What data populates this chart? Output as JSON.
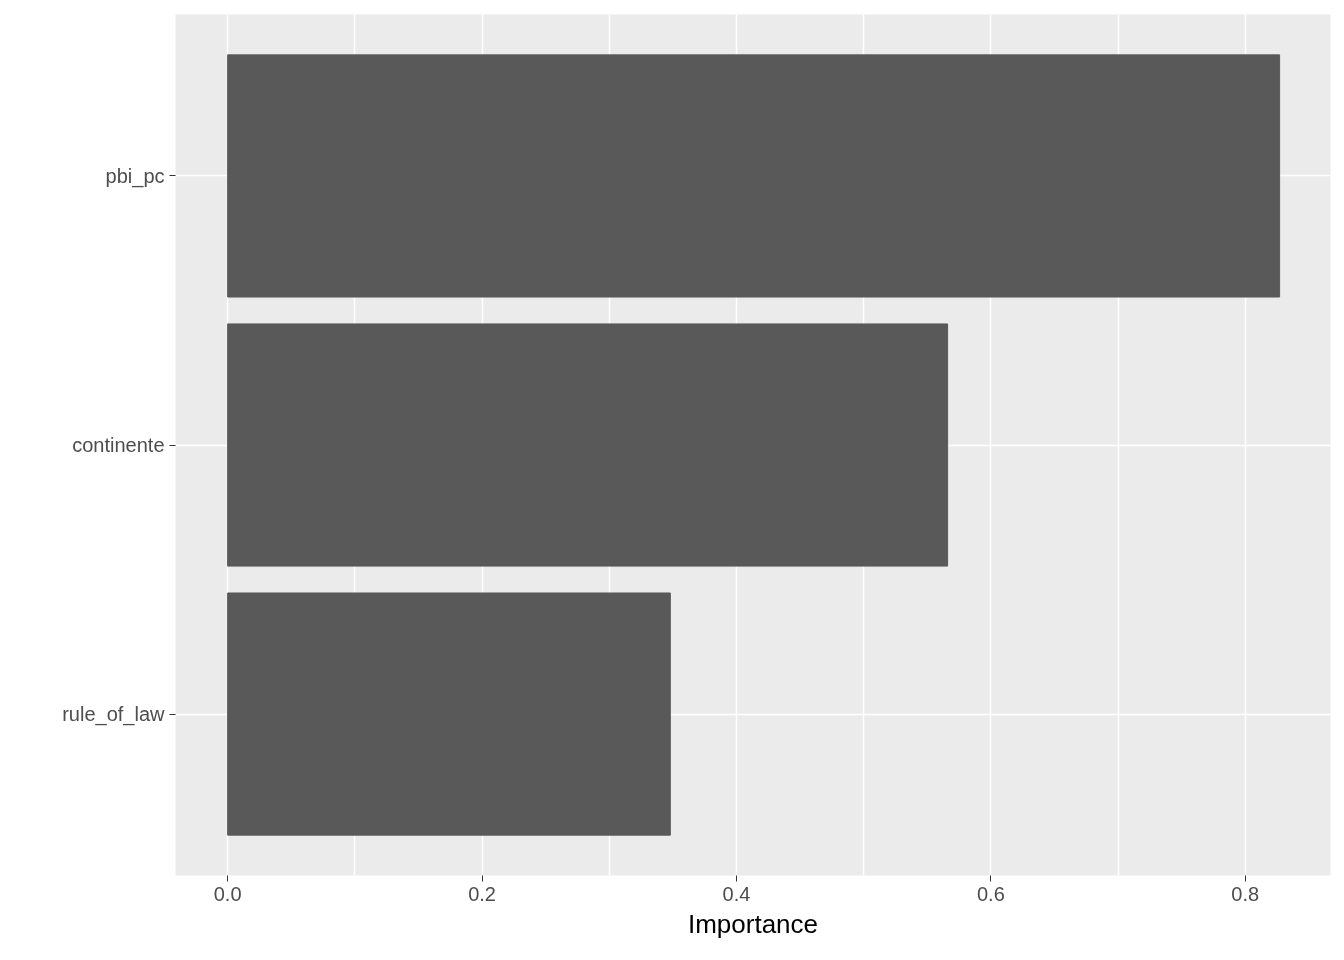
{
  "chart_data": {
    "type": "bar",
    "orientation": "horizontal",
    "xlabel": "Importance",
    "categories": [
      "pbi_pc",
      "continente",
      "rule_of_law"
    ],
    "values": [
      0.827,
      0.566,
      0.348
    ],
    "color": "#595959",
    "xlim": [
      -0.041,
      0.867
    ],
    "xticks": [
      {
        "value": 0,
        "label": "0.0"
      },
      {
        "value": 0.1,
        "label": null
      },
      {
        "value": 0.2,
        "label": "0.2"
      },
      {
        "value": 0.3,
        "label": null
      },
      {
        "value": 0.4,
        "label": "0.4"
      },
      {
        "value": 0.5,
        "label": null
      },
      {
        "value": 0.6,
        "label": "0.6"
      },
      {
        "value": 0.7,
        "label": null
      },
      {
        "value": 0.8,
        "label": "0.8"
      }
    ],
    "grid": true
  }
}
